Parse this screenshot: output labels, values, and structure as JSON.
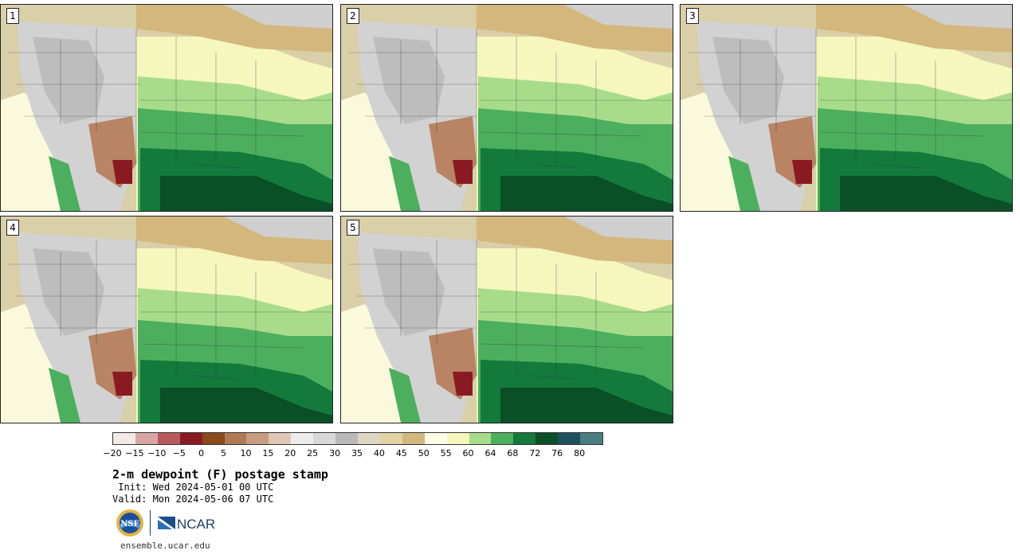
{
  "panels": [
    {
      "label": "1"
    },
    {
      "label": "2"
    },
    {
      "label": "3"
    },
    {
      "label": "4"
    },
    {
      "label": "5"
    }
  ],
  "colorbar": {
    "colors": [
      "#f3e9e7",
      "#d8a5a5",
      "#b75b5b",
      "#8a1a22",
      "#8a4a1a",
      "#b07a55",
      "#c89c80",
      "#e2c6b4",
      "#ececec",
      "#d8d8d8",
      "#b9b9b9",
      "#ddd6c3",
      "#e2d3a6",
      "#d4b77d",
      "#fdfde8",
      "#f5f7bd",
      "#a8dc8a",
      "#4caf5e",
      "#137a3c",
      "#0a4f26",
      "#1f5060",
      "#4a7f80"
    ],
    "ticks": [
      "−20",
      "−15",
      "−10",
      "−5",
      "0",
      "5",
      "10",
      "15",
      "20",
      "25",
      "30",
      "35",
      "40",
      "45",
      "50",
      "55",
      "60",
      "64",
      "68",
      "72",
      "76",
      "80"
    ]
  },
  "footer": {
    "title": "2-m dewpoint (F) postage stamp",
    "init": " Init: Wed 2024-05-01 00 UTC",
    "valid": "Valid: Mon 2024-05-06 07 UTC",
    "ncar_label": "NCAR",
    "nsf_label": "NSF",
    "website": "ensemble.ucar.edu"
  }
}
